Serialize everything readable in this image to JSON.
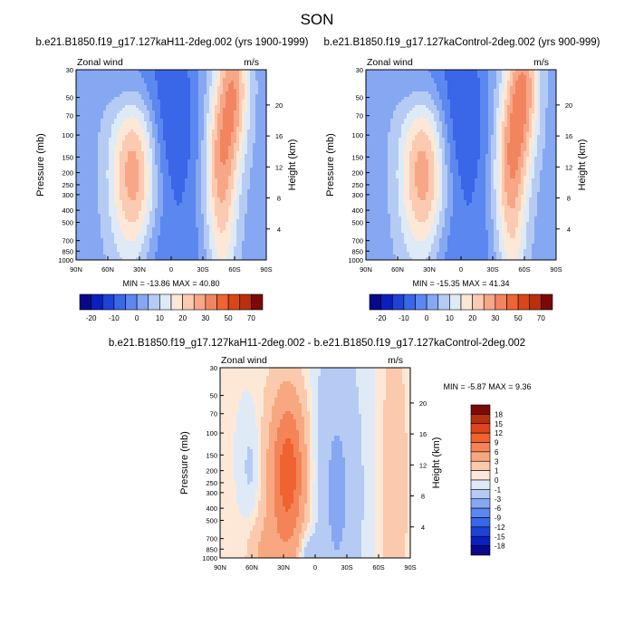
{
  "title": "SON",
  "chart_data": [
    {
      "type": "contour",
      "title": "b.e21.B1850.f19_g17.127kaH11-2deg.002 (yrs 1900-1999)",
      "variable": "Zonal wind",
      "units": "m/s",
      "ylabel": "Pressure (mb)",
      "ylabel_right": "Height (km)",
      "x_ticks": [
        "90N",
        "60N",
        "30N",
        "0",
        "30S",
        "60S",
        "90S"
      ],
      "y_ticks": [
        "30",
        "50",
        "70",
        "100",
        "150",
        "200",
        "250",
        "300",
        "400",
        "500",
        "700",
        "850",
        "1000"
      ],
      "height_ticks": [
        "4",
        "8",
        "12",
        "16",
        "20"
      ],
      "stats": "MIN = -13.86  MAX =  40.80",
      "min": -13.86,
      "max": 40.8
    },
    {
      "type": "contour",
      "title": "b.e21.B1850.f19_g17.127kaControl-2deg.002 (yrs 900-999)",
      "variable": "Zonal wind",
      "units": "m/s",
      "ylabel": "Pressure (mb)",
      "ylabel_right": "Height (km)",
      "x_ticks": [
        "90N",
        "60N",
        "30N",
        "0",
        "30S",
        "60S",
        "90S"
      ],
      "y_ticks": [
        "30",
        "50",
        "70",
        "100",
        "150",
        "200",
        "250",
        "300",
        "400",
        "500",
        "700",
        "850",
        "1000"
      ],
      "height_ticks": [
        "4",
        "8",
        "12",
        "16",
        "20"
      ],
      "stats": "MIN = -15.35  MAX =  41.34",
      "min": -15.35,
      "max": 41.34
    },
    {
      "type": "contour",
      "title": "b.e21.B1850.f19_g17.127kaH11-2deg.002 - b.e21.B1850.f19_g17.127kaControl-2deg.002",
      "variable": "Zonal wind",
      "units": "m/s",
      "ylabel": "Pressure (mb)",
      "ylabel_right": "Height (km)",
      "x_ticks": [
        "90N",
        "60N",
        "30N",
        "0",
        "30S",
        "60S",
        "90S"
      ],
      "y_ticks": [
        "30",
        "50",
        "70",
        "100",
        "150",
        "200",
        "250",
        "300",
        "400",
        "500",
        "700",
        "850",
        "1000"
      ],
      "height_ticks": [
        "4",
        "8",
        "12",
        "16",
        "20"
      ],
      "stats": "MIN = -5.87  MAX =  9.36",
      "min": -5.87,
      "max": 9.36
    }
  ],
  "colorbars": {
    "abs": {
      "labels": [
        "-20",
        "-10",
        "0",
        "10",
        "20",
        "30",
        "50",
        "70"
      ],
      "levels": [
        -20,
        -15,
        -10,
        -5,
        0,
        5,
        10,
        15,
        20,
        25,
        30,
        40,
        50,
        60,
        70
      ],
      "colors": [
        "#08088a",
        "#0a1fbf",
        "#1c42d6",
        "#3a66e8",
        "#5b87f0",
        "#86a8f3",
        "#b5cbf4",
        "#deebf7",
        "#fde8d8",
        "#fbcab0",
        "#f7a787",
        "#f28560",
        "#ee6432",
        "#d94717",
        "#b8300d",
        "#7a0909"
      ]
    },
    "diff": {
      "labels": [
        "18",
        "15",
        "12",
        "9",
        "6",
        "3",
        "1",
        "0",
        "-1",
        "-3",
        "-6",
        "-9",
        "-12",
        "-15",
        "-18"
      ],
      "colors": [
        "#7a0909",
        "#b8300d",
        "#e0441d",
        "#f06230",
        "#f48458",
        "#f8a880",
        "#fbcaac",
        "#fde8d8",
        "#deebf7",
        "#b5cbf4",
        "#86a8f3",
        "#5b87f0",
        "#3a66e8",
        "#1c42d6",
        "#0a1fbf",
        "#08088a"
      ]
    }
  }
}
